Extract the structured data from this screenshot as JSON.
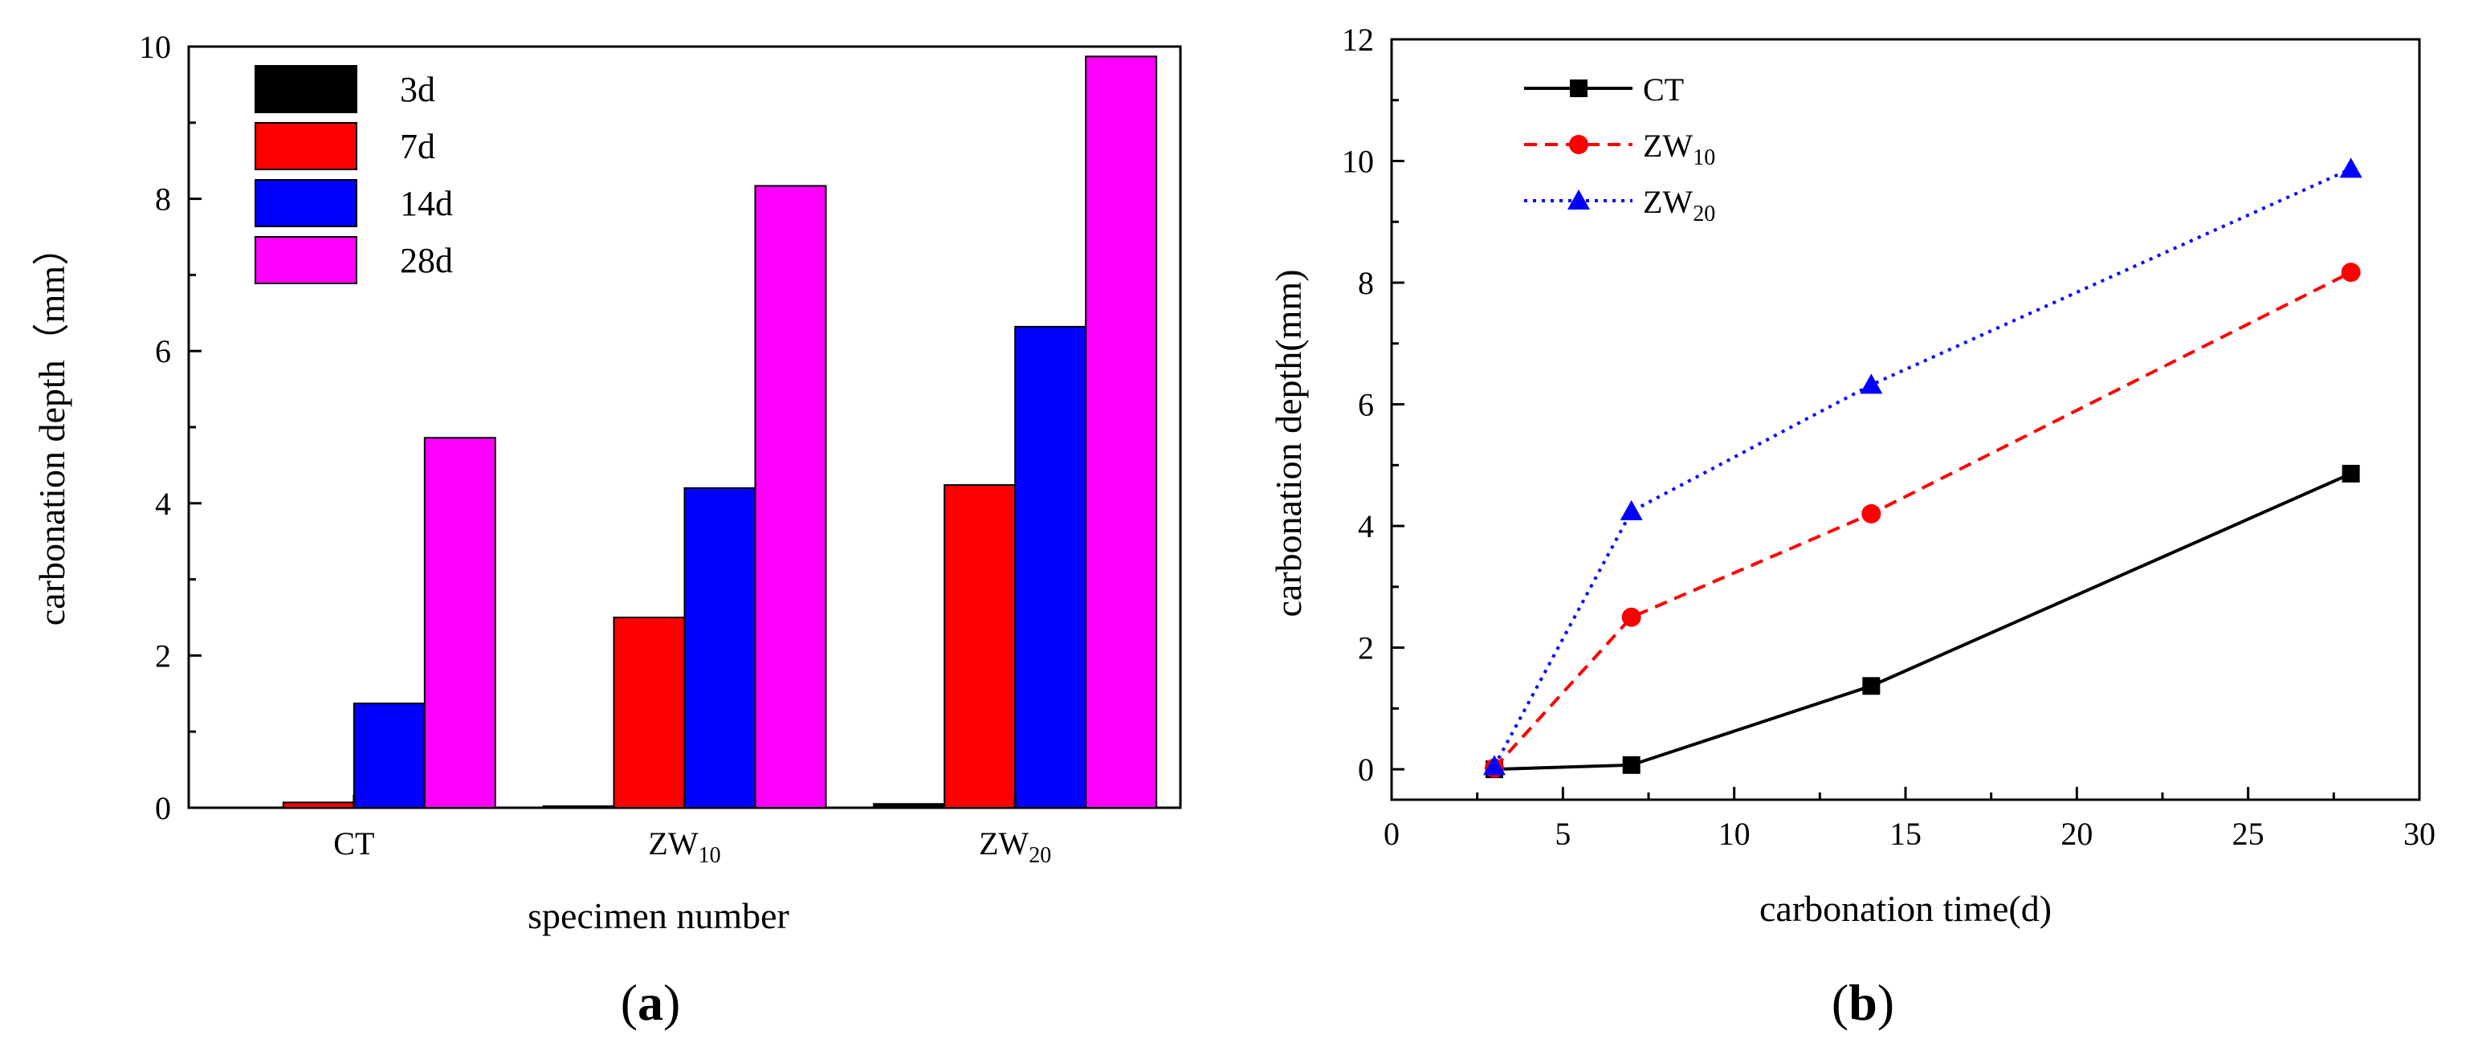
{
  "chart_data": [
    {
      "type": "bar",
      "panel": "(a)",
      "panel_letter": "a",
      "categories": [
        "CT",
        "ZW10",
        "ZW20"
      ],
      "category_labels": [
        {
          "main": "CT",
          "sub": ""
        },
        {
          "main": "ZW",
          "sub": "10"
        },
        {
          "main": "ZW",
          "sub": "20"
        }
      ],
      "series": [
        {
          "name": "3d",
          "color": "#000000",
          "values": [
            0.0,
            0.02,
            0.05
          ]
        },
        {
          "name": "7d",
          "color": "#ff0000",
          "values": [
            0.07,
            2.5,
            4.24
          ]
        },
        {
          "name": "14d",
          "color": "#0000ff",
          "values": [
            1.37,
            4.2,
            6.32
          ]
        },
        {
          "name": "28d",
          "color": "#ff00ff",
          "values": [
            4.86,
            8.17,
            9.87
          ]
        }
      ],
      "xlabel": "specimen number",
      "ylabel": "carbonation depth（mm）",
      "ylim": [
        0,
        10
      ],
      "yticks": [
        0,
        2,
        4,
        6,
        8,
        10
      ],
      "legend_position": "top-left"
    },
    {
      "type": "line",
      "panel": "(b)",
      "panel_letter": "b",
      "x": [
        3,
        7,
        14,
        28
      ],
      "series": [
        {
          "name": "CT",
          "label_main": "CT",
          "label_sub": "",
          "color": "#000000",
          "marker": "square",
          "dash": "solid",
          "values": [
            0.0,
            0.07,
            1.37,
            4.86
          ]
        },
        {
          "name": "ZW10",
          "label_main": "ZW",
          "label_sub": "10",
          "color": "#ff0000",
          "marker": "circle",
          "dash": "dashed",
          "values": [
            0.02,
            2.5,
            4.2,
            8.17
          ]
        },
        {
          "name": "ZW20",
          "label_main": "ZW",
          "label_sub": "20",
          "color": "#0000ff",
          "marker": "triangle",
          "dash": "dotted",
          "values": [
            0.05,
            4.24,
            6.32,
            9.87
          ]
        }
      ],
      "xlabel": "carbonation time(d)",
      "ylabel": "carbonation depth(mm)",
      "xlim": [
        0,
        30
      ],
      "ylim": [
        -0.5,
        12
      ],
      "xticks": [
        0,
        5,
        10,
        15,
        20,
        25,
        30
      ],
      "yticks": [
        0,
        2,
        4,
        6,
        8,
        10,
        12
      ],
      "legend_position": "top-left"
    }
  ]
}
